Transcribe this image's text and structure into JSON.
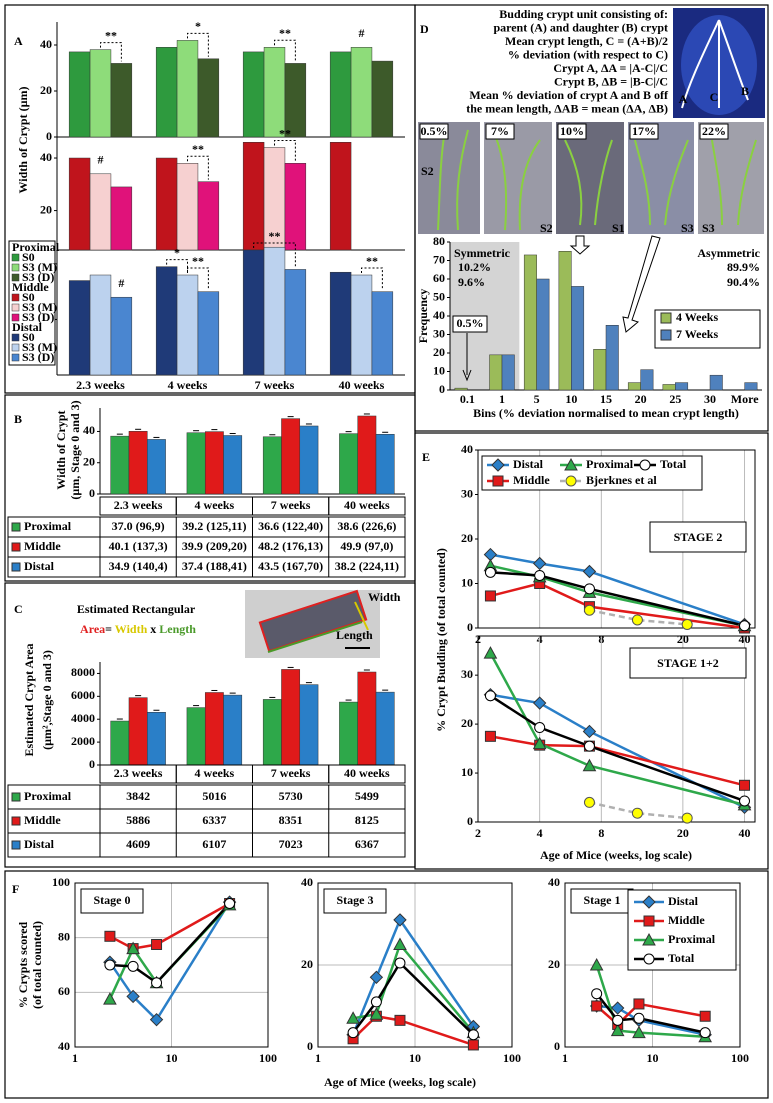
{
  "chart_data": [
    {
      "type": "bar",
      "panel": "A",
      "ylabel": "Width of Crypt (µm)",
      "legend_title": "Proximal",
      "ylim": [
        0,
        50
      ],
      "yticks": [
        0,
        20,
        40
      ],
      "series": [
        {
          "name": "S0",
          "color": "#2e9a3e",
          "values": [
            37,
            39,
            37,
            37
          ]
        },
        {
          "name": "S3 (M)",
          "color": "#8edc7a",
          "values": [
            38,
            42,
            39,
            39
          ]
        },
        {
          "name": "S3 (D)",
          "color": "#3d5a2a",
          "values": [
            32,
            34,
            32,
            33
          ]
        }
      ],
      "annotations": [
        "**",
        "*",
        "**",
        "#"
      ]
    },
    {
      "type": "bar",
      "legend_title": "Middle",
      "ylim": [
        5,
        48
      ],
      "yticks": [
        20,
        40
      ],
      "series": [
        {
          "name": "S0",
          "color": "#c0141c",
          "values": [
            40,
            40,
            46,
            46
          ]
        },
        {
          "name": "S3 (M)",
          "color": "#f6d0d0",
          "values": [
            34,
            38,
            44,
            null
          ]
        },
        {
          "name": "S3 (D)",
          "color": "#e0127a",
          "values": [
            29,
            31,
            38,
            null
          ]
        }
      ],
      "annotations": [
        "#",
        "**",
        "**"
      ]
    },
    {
      "type": "bar",
      "legend_title": "Distal",
      "categories": [
        "2.3 weeks",
        "4 weeks",
        "7 weeks",
        "40 weeks"
      ],
      "ylim": [
        0,
        45
      ],
      "yticks": [
        20,
        40
      ],
      "series": [
        {
          "name": "S0",
          "color": "#1f3a78",
          "values": [
            34,
            39,
            45,
            37
          ]
        },
        {
          "name": "S3 (M)",
          "color": "#bcd2ee",
          "values": [
            36,
            36,
            46,
            36
          ]
        },
        {
          "name": "S3 (D)",
          "color": "#4a86d0",
          "values": [
            28,
            30,
            38,
            30
          ]
        }
      ],
      "annotations": [
        "#",
        "*",
        "**",
        "**",
        "**"
      ]
    },
    {
      "type": "bar",
      "panel": "B",
      "ylabel": [
        "Width of Crypt",
        "(µm, Stage 0 and 3)"
      ],
      "categories": [
        "2.3 weeks",
        "4 weeks",
        "7 weeks",
        "40 weeks"
      ],
      "ylim": [
        0,
        55
      ],
      "yticks": [
        0,
        20,
        40
      ],
      "series": [
        {
          "name": "Proximal",
          "color": "#2ea84a",
          "values": [
            37.0,
            39.2,
            36.6,
            38.6
          ],
          "value_labels": [
            "37.0 (96,9)",
            "39.2 (125,11)",
            "36.6 (122,40)",
            "38.6 (226,6)"
          ]
        },
        {
          "name": "Middle",
          "color": "#e01a1a",
          "values": [
            40.1,
            39.9,
            48.2,
            49.9
          ],
          "value_labels": [
            "40.1 (137,3)",
            "39.9 (209,20)",
            "48.2 (176,13)",
            "49.9 (97,0)"
          ]
        },
        {
          "name": "Distal",
          "color": "#2a7fc8",
          "values": [
            34.9,
            37.4,
            43.5,
            38.2
          ],
          "value_labels": [
            "34.9 (140,4)",
            "37.4 (188,41)",
            "43.5 (167,70)",
            "38.2 (224,11)"
          ]
        }
      ]
    },
    {
      "type": "bar",
      "panel": "C",
      "title_parts": [
        {
          "text": "Estimated Rectangular",
          "color": "#e02020"
        },
        {
          "text": "Area",
          "color": "#e02020"
        },
        {
          "text": "= ",
          "color": "#000000"
        },
        {
          "text": "Width",
          "color": "#d8c800"
        },
        {
          "text": " x ",
          "color": "#000000"
        },
        {
          "text": "Length",
          "color": "#4a9a2a"
        }
      ],
      "annotations": [
        "Width",
        "Length"
      ],
      "ylabel": [
        "Estimated Crypt Area",
        "(µm²,Stage 0 and 3)"
      ],
      "categories": [
        "2.3 weeks",
        "4 weeks",
        "7 weeks",
        "40 weeks"
      ],
      "ylim": [
        0,
        9000
      ],
      "yticks": [
        0,
        2000,
        4000,
        6000,
        8000
      ],
      "series": [
        {
          "name": "Proximal",
          "color": "#2ea84a",
          "values": [
            3842,
            5016,
            5730,
            5499
          ]
        },
        {
          "name": "Middle",
          "color": "#e01a1a",
          "values": [
            5886,
            6337,
            8351,
            8125
          ]
        },
        {
          "name": "Distal",
          "color": "#2a7fc8",
          "values": [
            4609,
            6107,
            7023,
            6367
          ]
        }
      ]
    },
    {
      "type": "histogram",
      "panel": "D",
      "description": [
        "Budding crypt unit consisting of:",
        "parent (A) and daughter (B) crypt",
        "Mean crypt length, C = (A+B)/2",
        "% deviation (with respect to C)",
        "Crypt A, ΔA = |A-C|/C",
        "Crypt B, ΔB = |B-C|/C",
        "Mean % deviation of crypt A and B off",
        "the mean length, ΔAB = mean (ΔA, ΔB)"
      ],
      "diagram_labels": [
        "A",
        "C",
        "B"
      ],
      "image_labels": [
        "0.5%",
        "7%",
        "10%",
        "17%",
        "22%"
      ],
      "stage_labels": [
        "S2",
        "S2",
        "S1",
        "S3",
        "S3"
      ],
      "annotations": [
        {
          "text": "Symmetric",
          "color": "#000000"
        },
        {
          "text": "10.2%",
          "color": "#3a9a3a"
        },
        {
          "text": "9.6%",
          "color": "#2a7fc8"
        },
        {
          "text": "Asymmetric",
          "color": "#000000"
        },
        {
          "text": "89.9%",
          "color": "#3a9a3a"
        },
        {
          "text": "90.4%",
          "color": "#2a7fc8"
        },
        {
          "text": "0.5%",
          "color": "#000000"
        }
      ],
      "xlabel": "Bins (% deviation normalised to mean crypt length)",
      "ylabel": "Frequency",
      "categories": [
        "0.1",
        "1",
        "5",
        "10",
        "15",
        "20",
        "25",
        "30",
        "More"
      ],
      "ylim": [
        0,
        80
      ],
      "yticks": [
        0,
        10,
        20,
        30,
        40,
        50,
        60,
        70,
        80
      ],
      "series": [
        {
          "name": "4 Weeks",
          "color": "#9bbb59",
          "values": [
            1,
            19,
            73,
            75,
            22,
            4,
            3,
            0,
            0
          ]
        },
        {
          "name": "7 Weeks",
          "color": "#4f81bd",
          "values": [
            0,
            19,
            60,
            56,
            35,
            11,
            4,
            8,
            4
          ]
        }
      ]
    },
    {
      "type": "line",
      "panel": "E",
      "title": "STAGE 2",
      "ylabel": "% Crypt Budding (of total counted)",
      "log_x": true,
      "xlim": [
        2,
        45
      ],
      "xticks": [
        2,
        4,
        8,
        20,
        40
      ],
      "ylim": [
        0,
        40
      ],
      "yticks": [
        0,
        10,
        20,
        30,
        40
      ],
      "x": [
        2.3,
        4,
        7,
        40
      ],
      "series": [
        {
          "name": "Distal",
          "color": "#2a7fc8",
          "marker": "diamond",
          "values": [
            16.5,
            14.5,
            12.7,
            0.8
          ]
        },
        {
          "name": "Middle",
          "color": "#e01a1a",
          "marker": "square",
          "values": [
            7.2,
            10,
            4.8,
            0
          ]
        },
        {
          "name": "Proximal",
          "color": "#2ea84a",
          "marker": "triangle",
          "values": [
            14,
            11.5,
            8,
            0.5
          ]
        },
        {
          "name": "Total",
          "color": "#000000",
          "marker": "circle",
          "marker_fill": "#ffffff",
          "values": [
            12.5,
            11.8,
            8.8,
            0.5
          ]
        },
        {
          "name": "Bjerknes et al",
          "color": "#b0b0b0",
          "marker": "circle",
          "marker_fill": "#ffff00",
          "dashed": true,
          "x": [
            7,
            12,
            21
          ],
          "values": [
            4,
            1.8,
            0.8
          ]
        }
      ]
    },
    {
      "type": "line",
      "title": "STAGE 1+2",
      "xlabel": "Age of Mice (weeks, log scale)",
      "log_x": true,
      "xlim": [
        2,
        45
      ],
      "xticks": [
        2,
        4,
        8,
        20,
        40
      ],
      "ylim": [
        0,
        38
      ],
      "yticks": [
        0,
        10,
        20,
        30
      ],
      "x": [
        2.3,
        4,
        7,
        40
      ],
      "series": [
        {
          "color": "#2a7fc8",
          "marker": "diamond",
          "values": [
            26,
            24.3,
            18.5,
            3
          ]
        },
        {
          "color": "#e01a1a",
          "marker": "square",
          "values": [
            17.5,
            15.7,
            15.5,
            7.5
          ]
        },
        {
          "color": "#2ea84a",
          "marker": "triangle",
          "values": [
            34.5,
            16,
            11.5,
            3.5
          ]
        },
        {
          "color": "#000000",
          "marker": "circle",
          "marker_fill": "#ffffff",
          "values": [
            25.8,
            19.3,
            15.5,
            4.3
          ]
        },
        {
          "color": "#b0b0b0",
          "marker": "circle",
          "marker_fill": "#ffff00",
          "dashed": true,
          "x": [
            7,
            12,
            21
          ],
          "values": [
            4,
            1.8,
            0.8
          ]
        }
      ]
    },
    {
      "type": "line",
      "panel": "F",
      "title": "Stage 0",
      "ylabel": [
        "% Crypts scored",
        "(of total counted)"
      ],
      "log_x": true,
      "grid": true,
      "xlim": [
        1,
        100
      ],
      "xticks": [
        1,
        10,
        100
      ],
      "ylim": [
        40,
        100
      ],
      "yticks": [
        40,
        60,
        80,
        100
      ],
      "x": [
        2.3,
        4,
        7,
        40
      ],
      "series": [
        {
          "color": "#2a7fc8",
          "marker": "diamond",
          "values": [
            71,
            58.5,
            50,
            93
          ]
        },
        {
          "color": "#e01a1a",
          "marker": "square",
          "values": [
            80.5,
            76,
            77.5,
            92.5
          ]
        },
        {
          "color": "#2ea84a",
          "marker": "triangle",
          "values": [
            57.5,
            76,
            63.5,
            92
          ]
        },
        {
          "color": "#000000",
          "marker": "circle",
          "marker_fill": "#ffffff",
          "values": [
            70,
            69.5,
            63.5,
            92.5
          ]
        }
      ]
    },
    {
      "type": "line",
      "title": "Stage 3",
      "xlabel": "Age of Mice (weeks, log scale)",
      "log_x": true,
      "grid": true,
      "xlim": [
        1,
        100
      ],
      "xticks": [
        1,
        10,
        100
      ],
      "ylim": [
        0,
        40
      ],
      "yticks": [
        0,
        20,
        40
      ],
      "x": [
        2.3,
        4,
        7,
        40
      ],
      "series": [
        {
          "color": "#2a7fc8",
          "marker": "diamond",
          "values": [
            3,
            17,
            31,
            5
          ]
        },
        {
          "color": "#e01a1a",
          "marker": "square",
          "values": [
            2,
            7.5,
            6.5,
            0.5
          ]
        },
        {
          "color": "#2ea84a",
          "marker": "triangle",
          "values": [
            7,
            8,
            25,
            3.5
          ]
        },
        {
          "color": "#000000",
          "marker": "circle",
          "marker_fill": "#ffffff",
          "values": [
            3.5,
            11,
            20.5,
            3
          ]
        }
      ]
    },
    {
      "type": "line",
      "title": "Stage 1",
      "log_x": true,
      "grid": true,
      "xlim": [
        1,
        100
      ],
      "xticks": [
        1,
        10,
        100
      ],
      "ylim": [
        0,
        40
      ],
      "yticks": [
        0,
        20,
        40
      ],
      "x": [
        2.3,
        4,
        7,
        40
      ],
      "series": [
        {
          "name": "Distal",
          "color": "#2a7fc8",
          "marker": "diamond",
          "values": [
            10,
            9.5,
            6.5,
            3
          ]
        },
        {
          "name": "Middle",
          "color": "#e01a1a",
          "marker": "square",
          "values": [
            10,
            5.5,
            10.5,
            7.5
          ]
        },
        {
          "name": "Proximal",
          "color": "#2ea84a",
          "marker": "triangle",
          "values": [
            20,
            4,
            3.5,
            2.5
          ]
        },
        {
          "name": "Total",
          "color": "#000000",
          "marker": "circle",
          "marker_fill": "#ffffff",
          "values": [
            13,
            6.5,
            7,
            3.5
          ]
        }
      ]
    }
  ]
}
